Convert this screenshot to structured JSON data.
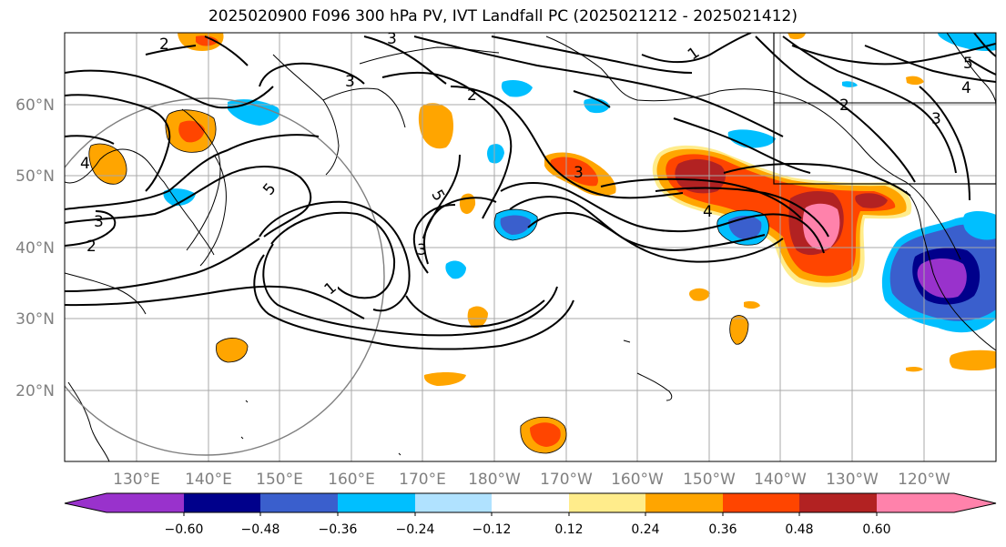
{
  "title": "2025020900 F096 300 hPa PV, IVT Landfall PC (2025021212 - 2025021412)",
  "map": {
    "lat_labels": [
      "60°N",
      "50°N",
      "40°N",
      "30°N",
      "20°N"
    ],
    "lon_labels": [
      "130°E",
      "140°E",
      "150°E",
      "160°E",
      "170°E",
      "180°W",
      "170°W",
      "160°W",
      "150°W",
      "140°W",
      "130°W",
      "120°W"
    ],
    "contour_labels": [
      "1",
      "1",
      "2",
      "2",
      "2",
      "2",
      "3",
      "3",
      "3",
      "3",
      "3",
      "3",
      "4",
      "4",
      "4",
      "5",
      "5",
      "5"
    ]
  },
  "colorbar": {
    "colors": [
      "#9932cc",
      "#00008b",
      "#3a5fcd",
      "#00bfff",
      "#b0e2ff",
      "#ffffff",
      "#ffec8b",
      "#ffa500",
      "#ff4500",
      "#b22222",
      "#ff82ab"
    ],
    "tick_labels": [
      "−0.60",
      "−0.48",
      "−0.36",
      "−0.24",
      "−0.12",
      "0.12",
      "0.24",
      "0.36",
      "0.48",
      "0.60"
    ]
  }
}
